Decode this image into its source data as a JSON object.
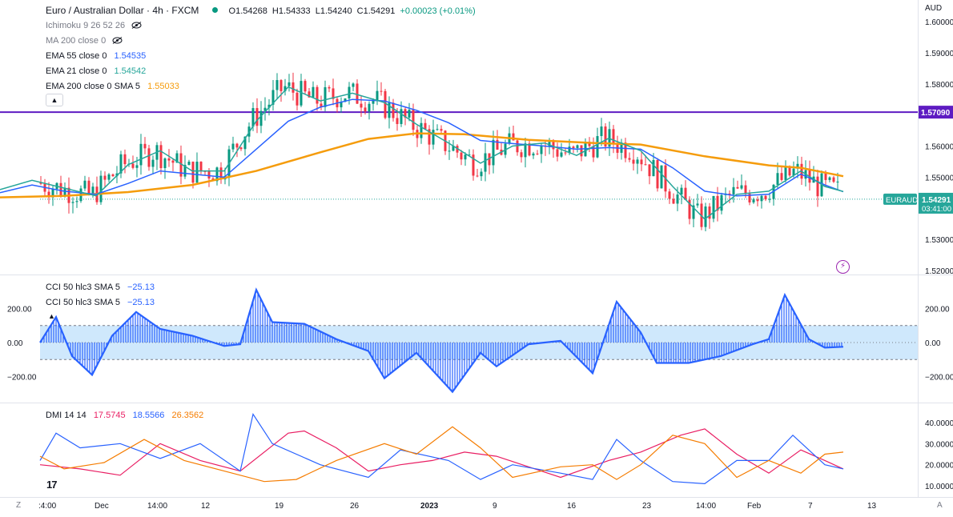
{
  "header": {
    "symbol_title": "Euro / Australian Dollar · 4h · FXCM",
    "open": "O1.54268",
    "high": "H1.54333",
    "low": "L1.54240",
    "close": "C1.54291",
    "change": "+0.00023 (+0.01%)",
    "status_color": "#089981"
  },
  "indicators": [
    {
      "label": "Ichimoku 9 26 52 26",
      "value": "",
      "hidden": true,
      "color": "#787b86"
    },
    {
      "label": "MA 200 close 0",
      "value": "",
      "hidden": true,
      "color": "#787b86"
    },
    {
      "label": "EMA 55 close 0",
      "value": "1.54535",
      "color": "#2962ff"
    },
    {
      "label": "EMA 21 close 0",
      "value": "1.54542",
      "color": "#26a69a"
    },
    {
      "label": "EMA 200 close 0 SMA 5",
      "value": "1.55033",
      "color": "#f59c0c"
    }
  ],
  "currency_label": "AUD",
  "price_axis": {
    "ticks": [
      "1.60000",
      "1.59000",
      "1.58000",
      "1.57000",
      "1.56000",
      "1.55000",
      "1.54000",
      "1.53000",
      "1.52000"
    ]
  },
  "hline": {
    "price_label": "1.57090",
    "color": "#5e1cc2"
  },
  "last_price": {
    "symbol": "EURAUD",
    "price": "1.54291",
    "countdown": "03:41:00",
    "color": "#26a69a"
  },
  "cci_panel": {
    "legend": [
      {
        "label": "CCI 50 hlc3 SMA 5",
        "value": "−25.13"
      },
      {
        "label": "CCI 50 hlc3 SMA 5",
        "value": "−25.13"
      }
    ],
    "ticks": [
      "200.00",
      "0.00",
      "−200.00"
    ],
    "band_color": "#bbdefb",
    "line_color": "#2962ff"
  },
  "dmi_panel": {
    "legend_label": "DMI 14 14",
    "values": [
      {
        "value": "17.5745",
        "color": "#e91e63"
      },
      {
        "value": "18.5566",
        "color": "#2962ff"
      },
      {
        "value": "26.3562",
        "color": "#f57c00"
      }
    ],
    "ticks": [
      "40.00000",
      "30.00000",
      "20.00000",
      "10.00000"
    ]
  },
  "time_axis": {
    "ticks": [
      ":4:00",
      "Dec",
      "14:00",
      "12",
      "19",
      "26",
      "2023",
      "9",
      "16",
      "23",
      "14:00",
      "Feb",
      "7",
      "13"
    ]
  },
  "corners": {
    "left": "Z",
    "right": "A"
  },
  "logo_text": "17",
  "chart_data": {
    "type": "line",
    "title": "Euro / Australian Dollar · 4h · FXCM",
    "x": [
      "Dec",
      "12",
      "19",
      "26",
      "2023",
      "9",
      "16",
      "23",
      "Feb",
      "7"
    ],
    "y_range": [
      1.515,
      1.602
    ],
    "series": [
      {
        "name": "EMA 200 close 0 SMA 5",
        "color": "#f59c0c",
        "points": [
          [
            0,
            1.5435
          ],
          [
            80,
            1.544
          ],
          [
            160,
            1.5452
          ],
          [
            240,
            1.5475
          ],
          [
            320,
            1.552
          ],
          [
            400,
            1.558
          ],
          [
            460,
            1.5623
          ],
          [
            520,
            1.5641
          ],
          [
            580,
            1.5638
          ],
          [
            660,
            1.562
          ],
          [
            740,
            1.561
          ],
          [
            800,
            1.5605
          ],
          [
            880,
            1.5567
          ],
          [
            960,
            1.5538
          ],
          [
            1000,
            1.553
          ],
          [
            1053,
            1.5503
          ]
        ]
      },
      {
        "name": "EMA 55 close 0",
        "color": "#2962ff",
        "points": [
          [
            0,
            1.545
          ],
          [
            40,
            1.5475
          ],
          [
            80,
            1.5455
          ],
          [
            120,
            1.5445
          ],
          [
            160,
            1.548
          ],
          [
            200,
            1.552
          ],
          [
            240,
            1.551
          ],
          [
            280,
            1.55
          ],
          [
            320,
            1.559
          ],
          [
            360,
            1.568
          ],
          [
            400,
            1.5725
          ],
          [
            440,
            1.575
          ],
          [
            480,
            1.5745
          ],
          [
            520,
            1.5715
          ],
          [
            560,
            1.5675
          ],
          [
            600,
            1.5618
          ],
          [
            640,
            1.5608
          ],
          [
            680,
            1.56
          ],
          [
            720,
            1.559
          ],
          [
            760,
            1.5595
          ],
          [
            800,
            1.559
          ],
          [
            840,
            1.553
          ],
          [
            880,
            1.5455
          ],
          [
            920,
            1.544
          ],
          [
            960,
            1.5445
          ],
          [
            1000,
            1.551
          ],
          [
            1030,
            1.5475
          ],
          [
            1053,
            1.5453
          ]
        ]
      },
      {
        "name": "EMA 21 close 0",
        "color": "#26a69a",
        "points": [
          [
            0,
            1.546
          ],
          [
            40,
            1.549
          ],
          [
            80,
            1.5465
          ],
          [
            120,
            1.544
          ],
          [
            160,
            1.554
          ],
          [
            200,
            1.5585
          ],
          [
            240,
            1.552
          ],
          [
            280,
            1.552
          ],
          [
            320,
            1.568
          ],
          [
            360,
            1.579
          ],
          [
            400,
            1.5745
          ],
          [
            440,
            1.577
          ],
          [
            480,
            1.574
          ],
          [
            520,
            1.567
          ],
          [
            560,
            1.561
          ],
          [
            600,
            1.5545
          ],
          [
            640,
            1.56
          ],
          [
            680,
            1.561
          ],
          [
            720,
            1.557
          ],
          [
            760,
            1.5625
          ],
          [
            800,
            1.5585
          ],
          [
            840,
            1.547
          ],
          [
            880,
            1.5365
          ],
          [
            920,
            1.5445
          ],
          [
            960,
            1.5455
          ],
          [
            1000,
            1.552
          ],
          [
            1030,
            1.547
          ],
          [
            1053,
            1.5454
          ]
        ]
      },
      {
        "name": "CCI 50 hlc3 SMA 5",
        "color": "#2962ff",
        "points": [
          [
            50,
            0
          ],
          [
            70,
            150
          ],
          [
            90,
            -80
          ],
          [
            115,
            -190
          ],
          [
            140,
            40
          ],
          [
            170,
            180
          ],
          [
            200,
            80
          ],
          [
            240,
            40
          ],
          [
            280,
            -20
          ],
          [
            300,
            -10
          ],
          [
            320,
            310
          ],
          [
            340,
            120
          ],
          [
            380,
            110
          ],
          [
            420,
            20
          ],
          [
            460,
            -50
          ],
          [
            480,
            -210
          ],
          [
            520,
            -60
          ],
          [
            565,
            -290
          ],
          [
            600,
            -60
          ],
          [
            620,
            -140
          ],
          [
            660,
            -10
          ],
          [
            700,
            10
          ],
          [
            740,
            -180
          ],
          [
            770,
            240
          ],
          [
            800,
            60
          ],
          [
            820,
            -120
          ],
          [
            860,
            -120
          ],
          [
            900,
            -80
          ],
          [
            940,
            -10
          ],
          [
            960,
            20
          ],
          [
            980,
            280
          ],
          [
            1010,
            20
          ],
          [
            1030,
            -30
          ],
          [
            1053,
            -25
          ]
        ]
      },
      {
        "name": "DMI +DI",
        "color": "#e91e63",
        "points": [
          [
            50,
            20
          ],
          [
            100,
            18
          ],
          [
            150,
            15
          ],
          [
            200,
            30
          ],
          [
            250,
            22
          ],
          [
            300,
            17
          ],
          [
            360,
            35
          ],
          [
            380,
            36
          ],
          [
            420,
            28
          ],
          [
            460,
            17
          ],
          [
            500,
            20
          ],
          [
            540,
            22
          ],
          [
            580,
            26
          ],
          [
            620,
            24
          ],
          [
            660,
            19
          ],
          [
            700,
            14
          ],
          [
            760,
            22
          ],
          [
            800,
            26
          ],
          [
            850,
            34
          ],
          [
            880,
            37
          ],
          [
            920,
            25
          ],
          [
            960,
            16
          ],
          [
            1000,
            27
          ],
          [
            1030,
            22
          ],
          [
            1053,
            18
          ]
        ]
      },
      {
        "name": "DMI -DI",
        "color": "#2962ff",
        "points": [
          [
            50,
            22
          ],
          [
            70,
            35
          ],
          [
            100,
            28
          ],
          [
            150,
            30
          ],
          [
            200,
            23
          ],
          [
            250,
            30
          ],
          [
            300,
            17
          ],
          [
            316,
            44
          ],
          [
            340,
            30
          ],
          [
            400,
            20
          ],
          [
            460,
            14
          ],
          [
            500,
            27
          ],
          [
            560,
            22
          ],
          [
            600,
            13
          ],
          [
            640,
            20
          ],
          [
            700,
            16
          ],
          [
            740,
            13
          ],
          [
            770,
            32
          ],
          [
            800,
            22
          ],
          [
            840,
            12
          ],
          [
            880,
            11
          ],
          [
            920,
            22
          ],
          [
            960,
            22
          ],
          [
            990,
            34
          ],
          [
            1030,
            20
          ],
          [
            1053,
            18
          ]
        ]
      },
      {
        "name": "DMI ADX",
        "color": "#f57c00",
        "points": [
          [
            50,
            24
          ],
          [
            80,
            18
          ],
          [
            130,
            21
          ],
          [
            180,
            32
          ],
          [
            230,
            22
          ],
          [
            280,
            17
          ],
          [
            330,
            12
          ],
          [
            370,
            13
          ],
          [
            420,
            22
          ],
          [
            480,
            30
          ],
          [
            520,
            25
          ],
          [
            565,
            38
          ],
          [
            600,
            28
          ],
          [
            640,
            14
          ],
          [
            700,
            19
          ],
          [
            740,
            20
          ],
          [
            770,
            13
          ],
          [
            800,
            20
          ],
          [
            840,
            34
          ],
          [
            880,
            30
          ],
          [
            920,
            14
          ],
          [
            960,
            22
          ],
          [
            1000,
            16
          ],
          [
            1030,
            25
          ],
          [
            1053,
            26
          ]
        ]
      }
    ]
  }
}
